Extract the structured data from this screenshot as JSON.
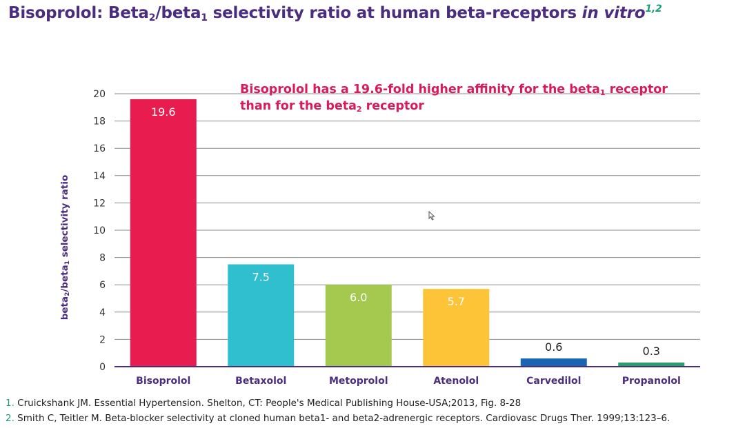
{
  "title": {
    "prefix": "Bisoprolol: Beta",
    "sub2": "2",
    "mid": "/beta",
    "sub1": "1",
    "suffix": " selectivity ratio at human beta-receptors ",
    "italic": "in vitro",
    "refs": "1,2"
  },
  "callout": {
    "line1_pre": "Bisoprolol has a 19.6-fold higher affinity for the beta",
    "line1_sub": "1",
    "line1_post": " receptor",
    "line2_pre": "than for the beta",
    "line2_sub": "2",
    "line2_post": " receptor"
  },
  "colors": {
    "title": "#4a2d7e",
    "callout": "#d81b5a",
    "reference_number": "#1b9e77"
  },
  "chart_data": {
    "type": "bar",
    "title": "",
    "xlabel": "",
    "ylabel": {
      "pre": "beta",
      "sub_a": "2",
      "mid": "/beta",
      "sub_b": "1",
      "post": " selectivity ratio"
    },
    "ylim": [
      0,
      20
    ],
    "yticks": [
      0,
      2,
      4,
      6,
      8,
      10,
      12,
      14,
      16,
      18,
      20
    ],
    "grid": true,
    "categories": [
      "Bisoprolol",
      "Betaxolol",
      "Metoprolol",
      "Atenolol",
      "Carvedilol",
      "Propanolol"
    ],
    "values": [
      19.6,
      7.5,
      6.0,
      5.7,
      0.6,
      0.3
    ],
    "value_labels": [
      "19.6",
      "7.5",
      "6.0",
      "5.7",
      "0.6",
      "0.3"
    ],
    "bar_colors": [
      "#e81c4f",
      "#2fbfcf",
      "#a5c94f",
      "#fdc437",
      "#1a64b4",
      "#2a9d6e"
    ]
  },
  "references": [
    {
      "num": "1.",
      "text": " Cruickshank JM. Essential Hypertension. Shelton, CT: People's Medical Publishing House-USA;2013, Fig. 8-28"
    },
    {
      "num": "2.",
      "text": " Smith C, Teitler M. Beta-blocker selectivity at cloned human beta1- and beta2-adrenergic receptors. Cardiovasc Drugs Ther. 1999;13:123–6."
    }
  ]
}
